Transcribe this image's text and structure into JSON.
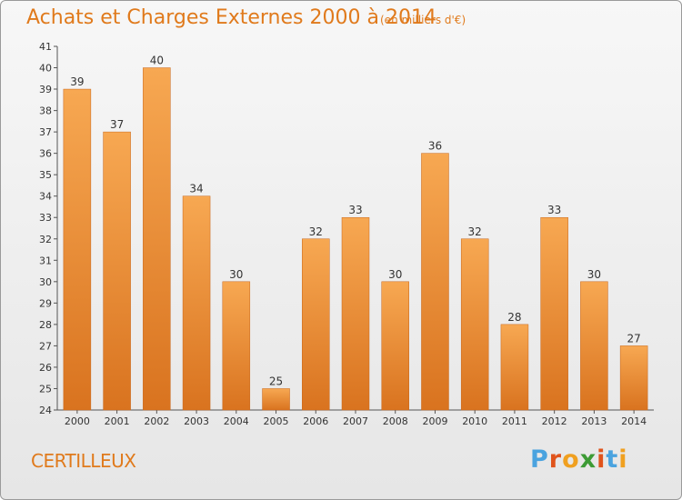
{
  "header": {
    "title": "Achats et Charges Externes 2000 à 2014",
    "subtitle": "(en milliers d'€)"
  },
  "footer": {
    "location": "CERTILLEUX",
    "logo_text": "Proxiti",
    "logo_colors": [
      "#4aa3df",
      "#e0541c",
      "#f0a020",
      "#3d9b35",
      "#e0541c",
      "#4aa3df",
      "#f0a020"
    ]
  },
  "colors": {
    "bar_light": "#f7a852",
    "bar_dark": "#d9731f",
    "bar_edge": "#c8661a",
    "accent": "#e07a1c"
  },
  "chart_data": {
    "type": "bar",
    "title": "Achats et Charges Externes 2000 à 2014",
    "subtitle": "(en milliers d'€)",
    "categories": [
      "2000",
      "2001",
      "2002",
      "2003",
      "2004",
      "2005",
      "2006",
      "2007",
      "2008",
      "2009",
      "2010",
      "2011",
      "2012",
      "2013",
      "2014"
    ],
    "values": [
      39,
      37,
      40,
      34,
      30,
      25,
      32,
      33,
      30,
      36,
      32,
      28,
      33,
      30,
      27
    ],
    "ylim": [
      24,
      41
    ],
    "yticks": [
      24,
      25,
      26,
      27,
      28,
      29,
      30,
      31,
      32,
      33,
      34,
      35,
      36,
      37,
      38,
      39,
      40,
      41
    ],
    "grid": false,
    "legend": "none"
  }
}
